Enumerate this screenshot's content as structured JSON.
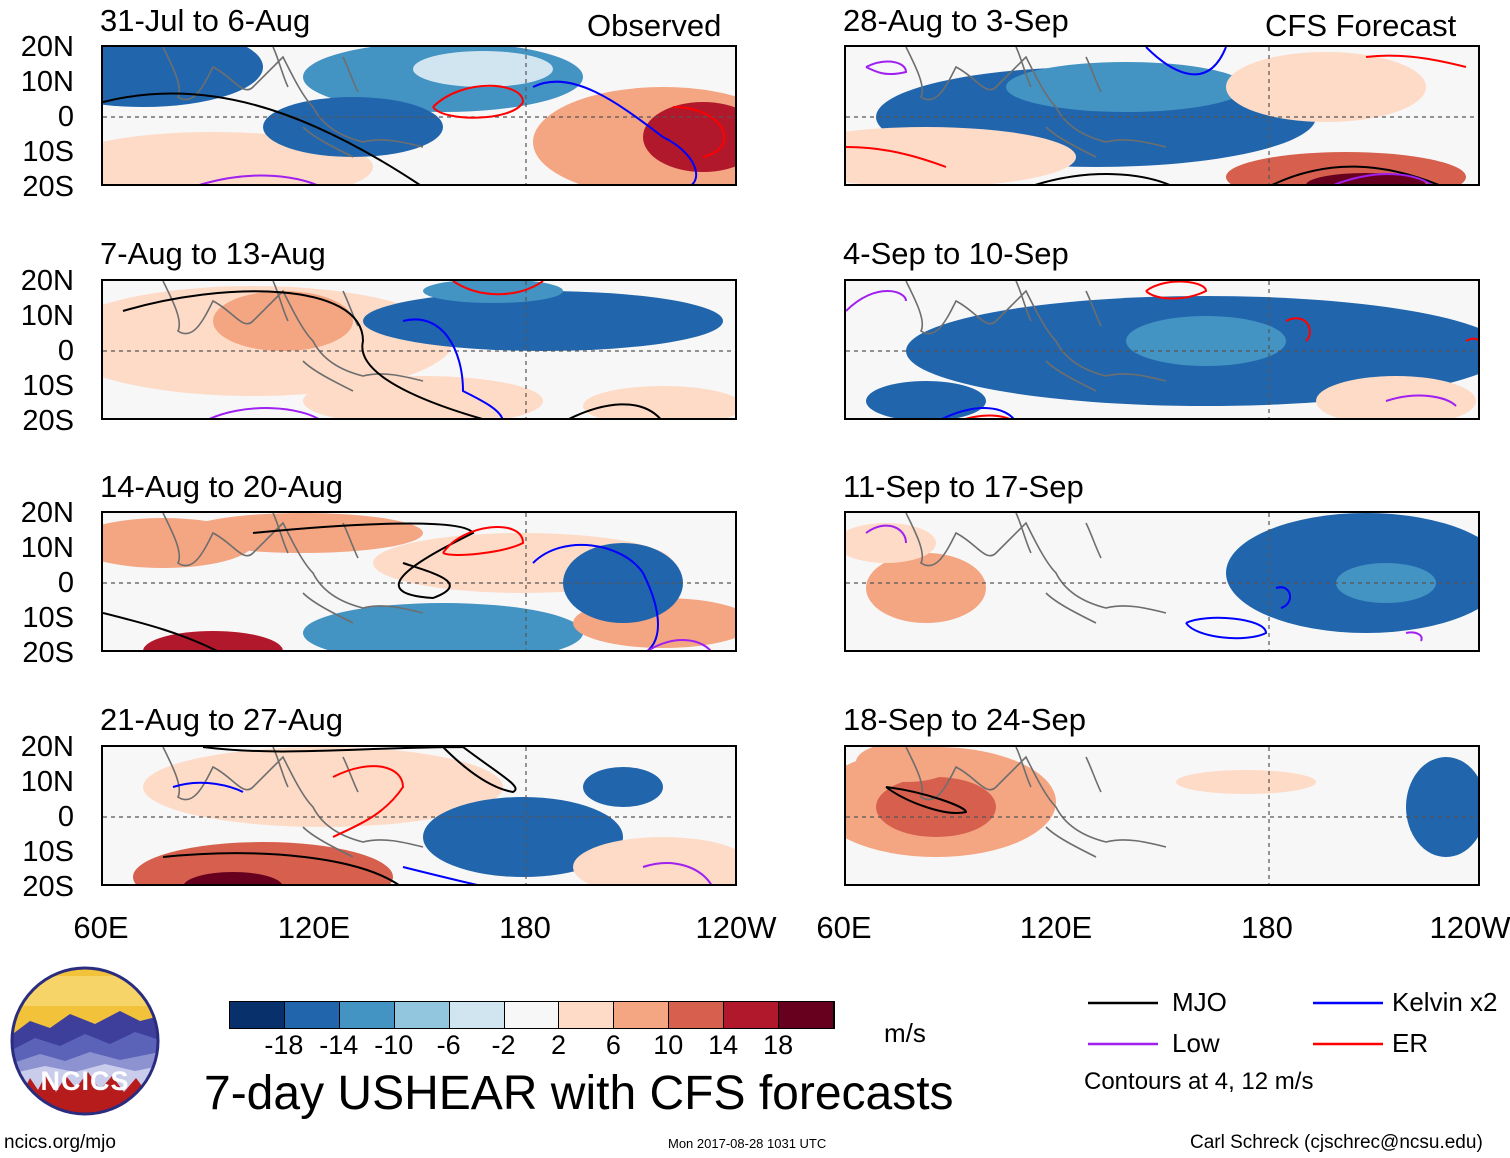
{
  "figure": {
    "title": "7-day USHEAR with CFS forecasts",
    "observed_label": "Observed",
    "forecast_label": "CFS Forecast"
  },
  "columns": {
    "observed": {
      "panels": [
        {
          "date": "31-Jul to 6-Aug"
        },
        {
          "date": "7-Aug to 13-Aug"
        },
        {
          "date": "14-Aug to 20-Aug"
        },
        {
          "date": "21-Aug to 27-Aug"
        }
      ]
    },
    "forecast": {
      "panels": [
        {
          "date": "28-Aug to 3-Sep"
        },
        {
          "date": "4-Sep to 10-Sep"
        },
        {
          "date": "11-Sep to 17-Sep"
        },
        {
          "date": "18-Sep to 24-Sep"
        }
      ]
    }
  },
  "axes": {
    "lat_labels": [
      "20N",
      "10N",
      "0",
      "10S",
      "20S"
    ],
    "lon_labels": [
      "60E",
      "120E",
      "180",
      "120W"
    ]
  },
  "colorbar": {
    "units": "m/s",
    "labels": [
      "-18",
      "-14",
      "-10",
      "-6",
      "-2",
      "2",
      "6",
      "10",
      "14",
      "18"
    ],
    "colors": [
      "#08306b",
      "#2166ac",
      "#4393c3",
      "#92c5de",
      "#d1e5f0",
      "#f7f7f7",
      "#fddbc7",
      "#f4a582",
      "#d6604d",
      "#b2182b",
      "#67001f"
    ]
  },
  "legend": {
    "items": [
      {
        "label": "MJO",
        "color": "#000000"
      },
      {
        "label": "Kelvin x2",
        "color": "#0000ff"
      },
      {
        "label": "Low",
        "color": "#a020f0"
      },
      {
        "label": "ER",
        "color": "#ff0000"
      }
    ],
    "note": "Contours at 4, 12 m/s"
  },
  "logo": {
    "text": "NCICS"
  },
  "footer": {
    "website": "ncics.org/mjo",
    "timestamp": "Mon 2017-08-28 1031 UTC",
    "author": "Carl Schreck (cjschrec@ncsu.edu)"
  }
}
